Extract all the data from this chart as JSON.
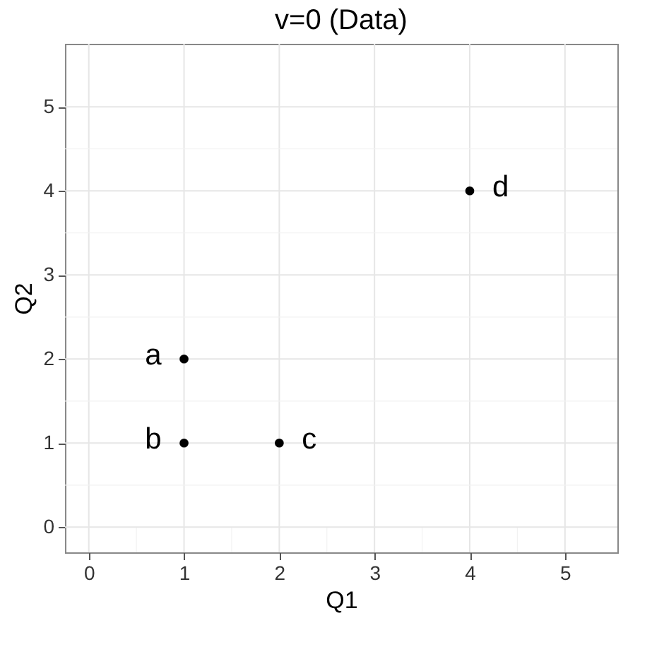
{
  "chart_data": {
    "type": "scatter",
    "title": "v=0 (Data)",
    "xlabel": "Q1",
    "ylabel": "Q2",
    "x": [
      1,
      1,
      2,
      4
    ],
    "series": [
      {
        "color": "#000000",
        "values": [
          2,
          1,
          1,
          4
        ]
      }
    ],
    "xlim": [
      -0.25,
      5.55
    ],
    "ylim": [
      -0.3,
      5.75
    ],
    "xticks": [
      0,
      1,
      2,
      3,
      4,
      5
    ],
    "yticks": [
      0,
      1,
      2,
      3,
      4,
      5
    ],
    "grid": true,
    "marker": "circle",
    "annotations": [
      {
        "text": "a",
        "x": 1,
        "y": 2
      },
      {
        "text": "b",
        "x": 1,
        "y": 1
      },
      {
        "text": "c",
        "x": 2,
        "y": 1
      },
      {
        "text": "d",
        "x": 4,
        "y": 4
      }
    ]
  }
}
